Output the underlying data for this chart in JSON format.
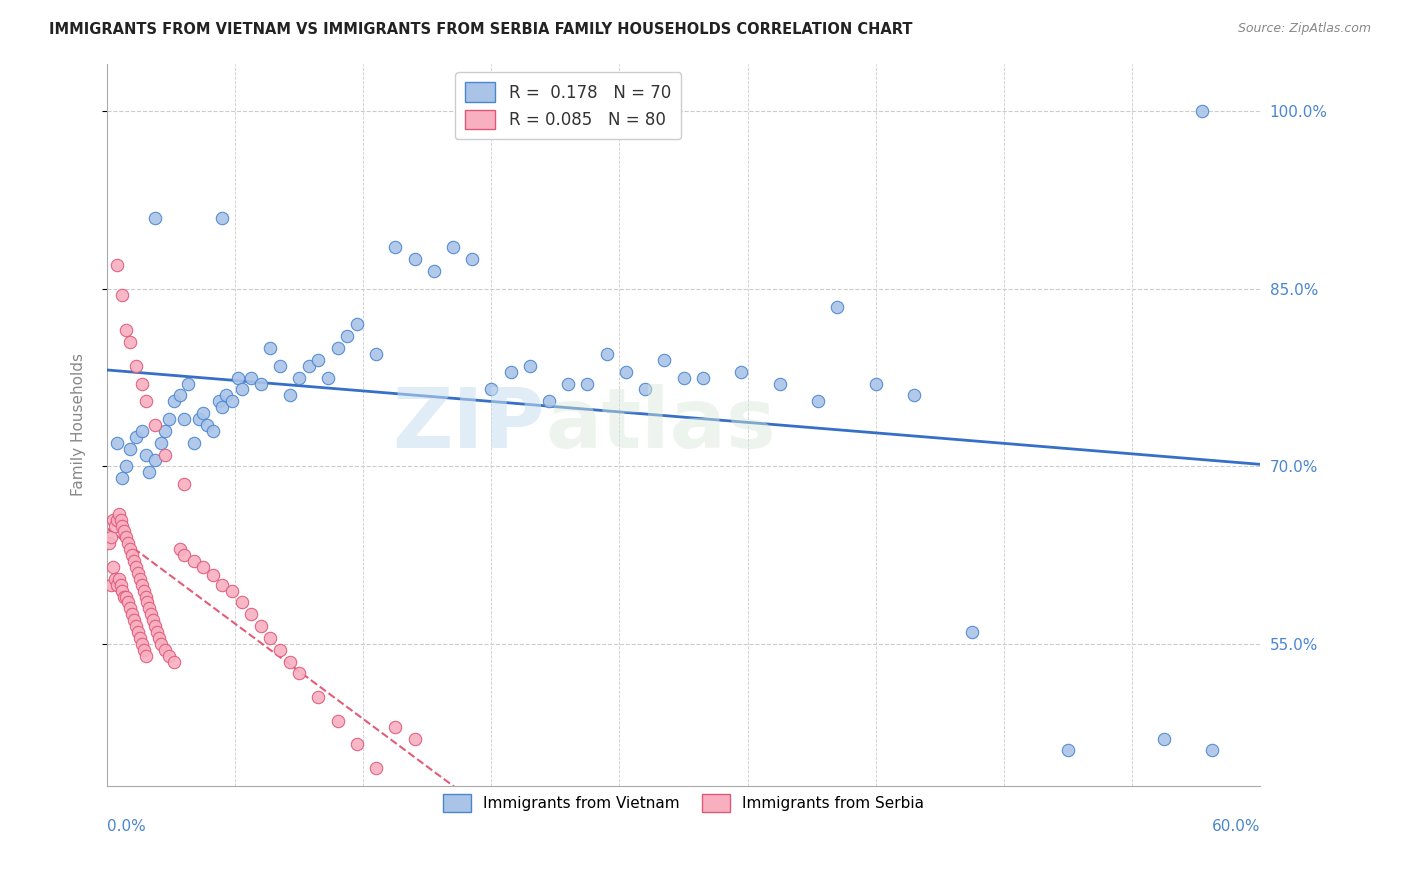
{
  "title": "IMMIGRANTS FROM VIETNAM VS IMMIGRANTS FROM SERBIA FAMILY HOUSEHOLDS CORRELATION CHART",
  "source": "Source: ZipAtlas.com",
  "ylabel": "Family Households",
  "ytick_vals": [
    1.0,
    0.85,
    0.7,
    0.55
  ],
  "ytick_labels": [
    "100.0%",
    "85.0%",
    "70.0%",
    "55.0%"
  ],
  "xlim": [
    0.0,
    0.6
  ],
  "ylim": [
    0.43,
    1.04
  ],
  "blue_fill": "#aac4e8",
  "blue_edge": "#4a86d0",
  "pink_fill": "#f8b0c0",
  "pink_edge": "#e05878",
  "blue_line": "#2060c0",
  "pink_line": "#e04060",
  "grid_color": "#cccccc",
  "watermark_color": "#d8e8f4",
  "vietnam_x": [
    0.005,
    0.008,
    0.01,
    0.012,
    0.015,
    0.018,
    0.02,
    0.022,
    0.025,
    0.028,
    0.03,
    0.032,
    0.035,
    0.038,
    0.04,
    0.042,
    0.045,
    0.048,
    0.05,
    0.052,
    0.055,
    0.058,
    0.06,
    0.062,
    0.065,
    0.068,
    0.07,
    0.075,
    0.08,
    0.085,
    0.09,
    0.095,
    0.1,
    0.105,
    0.11,
    0.115,
    0.12,
    0.125,
    0.13,
    0.14,
    0.15,
    0.16,
    0.17,
    0.18,
    0.19,
    0.2,
    0.21,
    0.22,
    0.23,
    0.24,
    0.25,
    0.26,
    0.27,
    0.28,
    0.29,
    0.3,
    0.31,
    0.33,
    0.35,
    0.37,
    0.38,
    0.4,
    0.42,
    0.45,
    0.5,
    0.55,
    0.575,
    0.025,
    0.06,
    0.57
  ],
  "vietnam_y": [
    0.72,
    0.69,
    0.7,
    0.715,
    0.725,
    0.73,
    0.71,
    0.695,
    0.705,
    0.72,
    0.73,
    0.74,
    0.755,
    0.76,
    0.74,
    0.77,
    0.72,
    0.74,
    0.745,
    0.735,
    0.73,
    0.755,
    0.75,
    0.76,
    0.755,
    0.775,
    0.765,
    0.775,
    0.77,
    0.8,
    0.785,
    0.76,
    0.775,
    0.785,
    0.79,
    0.775,
    0.8,
    0.81,
    0.82,
    0.795,
    0.885,
    0.875,
    0.865,
    0.885,
    0.875,
    0.765,
    0.78,
    0.785,
    0.755,
    0.77,
    0.77,
    0.795,
    0.78,
    0.765,
    0.79,
    0.775,
    0.775,
    0.78,
    0.77,
    0.755,
    0.835,
    0.77,
    0.76,
    0.56,
    0.46,
    0.47,
    0.46,
    0.91,
    0.91,
    1.0
  ],
  "serbia_x": [
    0.001,
    0.002,
    0.002,
    0.003,
    0.003,
    0.004,
    0.004,
    0.005,
    0.005,
    0.006,
    0.006,
    0.007,
    0.007,
    0.008,
    0.008,
    0.009,
    0.009,
    0.01,
    0.01,
    0.011,
    0.011,
    0.012,
    0.012,
    0.013,
    0.013,
    0.014,
    0.014,
    0.015,
    0.015,
    0.016,
    0.016,
    0.017,
    0.017,
    0.018,
    0.018,
    0.019,
    0.019,
    0.02,
    0.02,
    0.021,
    0.022,
    0.023,
    0.024,
    0.025,
    0.026,
    0.027,
    0.028,
    0.03,
    0.032,
    0.035,
    0.038,
    0.04,
    0.045,
    0.05,
    0.055,
    0.06,
    0.065,
    0.07,
    0.075,
    0.08,
    0.085,
    0.09,
    0.095,
    0.1,
    0.11,
    0.12,
    0.13,
    0.14,
    0.15,
    0.16,
    0.005,
    0.008,
    0.01,
    0.012,
    0.015,
    0.018,
    0.02,
    0.025,
    0.03,
    0.04
  ],
  "serbia_y": [
    0.635,
    0.64,
    0.6,
    0.655,
    0.615,
    0.65,
    0.605,
    0.655,
    0.6,
    0.66,
    0.605,
    0.655,
    0.6,
    0.65,
    0.595,
    0.645,
    0.59,
    0.64,
    0.59,
    0.635,
    0.585,
    0.63,
    0.58,
    0.625,
    0.575,
    0.62,
    0.57,
    0.615,
    0.565,
    0.61,
    0.56,
    0.605,
    0.555,
    0.6,
    0.55,
    0.595,
    0.545,
    0.59,
    0.54,
    0.585,
    0.58,
    0.575,
    0.57,
    0.565,
    0.56,
    0.555,
    0.55,
    0.545,
    0.54,
    0.535,
    0.63,
    0.625,
    0.62,
    0.615,
    0.608,
    0.6,
    0.595,
    0.585,
    0.575,
    0.565,
    0.555,
    0.545,
    0.535,
    0.525,
    0.505,
    0.485,
    0.465,
    0.445,
    0.48,
    0.47,
    0.87,
    0.845,
    0.815,
    0.805,
    0.785,
    0.77,
    0.755,
    0.735,
    0.71,
    0.685
  ]
}
